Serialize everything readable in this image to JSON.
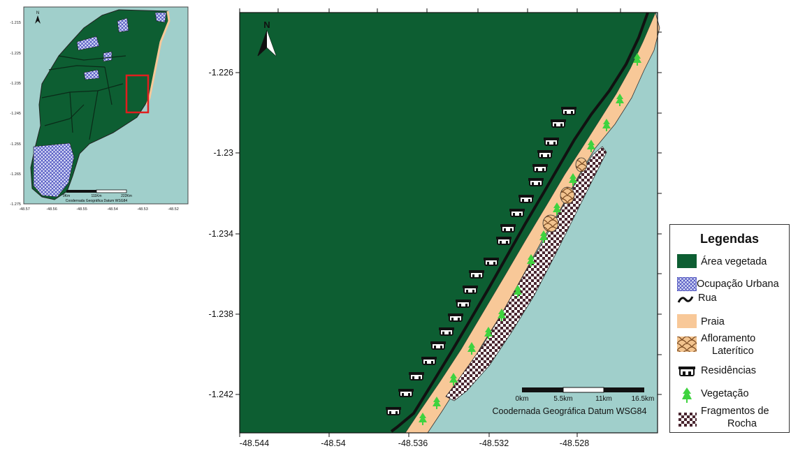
{
  "main_map": {
    "north_label": "N",
    "y_ticks": [
      "-1.226",
      "-1.23",
      "-1.234",
      "-1.238",
      "-1.242"
    ],
    "x_ticks": [
      "-48.544",
      "-48.54",
      "-48.536",
      "-48.532",
      "-48.528"
    ],
    "scalebar_labels": [
      "0km",
      "5.5km",
      "11km",
      "16.5km"
    ],
    "datum": "Coodernada Geográfica Datum WSG84"
  },
  "inset_map": {
    "north_label": "N",
    "y_ticks": [
      "-1.215",
      "-1.225",
      "-1.235",
      "-1.245",
      "-1.255",
      "-1.265",
      "-1.275"
    ],
    "x_ticks": [
      "-48.57",
      "-48.56",
      "-48.55",
      "-48.54",
      "-48.53",
      "-48.52"
    ],
    "scalebar_labels": [
      "0Km",
      "111Km",
      "222Km"
    ],
    "datum": "Coodernada Geográfica Datum WSG84"
  },
  "legend": {
    "title": "Legendas",
    "items": [
      {
        "label": "Área vegetada",
        "icon": "green-fill",
        "color": "#0d5e32"
      },
      {
        "label": "Ocupação Urbana",
        "icon": "blue-crosshatch",
        "color": "#3b40b8"
      },
      {
        "label": "Rua",
        "icon": "road-wave"
      },
      {
        "label": "Praia",
        "icon": "sand-fill",
        "color": "#f8c898"
      },
      {
        "label_line1": "Afloramento",
        "label_line2": "Laterítico",
        "icon": "scalloped-pattern"
      },
      {
        "label": "Residências",
        "icon": "house-icon"
      },
      {
        "label": "Vegetação",
        "icon": "tree-icon",
        "color": "#3fd33f"
      },
      {
        "label_line1": "Fragmentos de",
        "label_line2": "Rocha",
        "icon": "checker-pattern"
      }
    ]
  },
  "colors": {
    "water": "#a0cfcb",
    "vegetation": "#0d5e32",
    "beach": "#f8c898",
    "urban": "#3b40b8",
    "highlight": "#e01e1e"
  }
}
